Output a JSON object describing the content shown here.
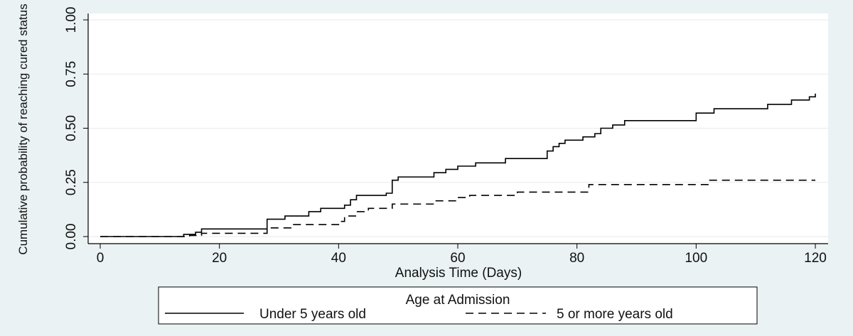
{
  "chart_data": {
    "type": "line",
    "title": "",
    "xlabel": "Analysis Time (Days)",
    "ylabel": "Cumulative probability of reaching cured status",
    "xlim": [
      0,
      120
    ],
    "ylim": [
      0,
      1
    ],
    "x_ticks": [
      0,
      20,
      40,
      60,
      80,
      100,
      120
    ],
    "y_ticks": [
      0,
      0.25,
      0.5,
      0.75,
      1
    ],
    "y_tick_labels": [
      "0.00",
      "0.25",
      "0.50",
      "0.75",
      "1.00"
    ],
    "grid": "horizontal",
    "legend": {
      "title": "Age at Admission",
      "placement": "bottom"
    },
    "series": [
      {
        "name": "Under 5 years old",
        "style": "solid",
        "color": "#000000",
        "step_points": [
          [
            0,
            0
          ],
          [
            14,
            0.01
          ],
          [
            16,
            0.02
          ],
          [
            17,
            0.035
          ],
          [
            28,
            0.08
          ],
          [
            31,
            0.095
          ],
          [
            35,
            0.115
          ],
          [
            37,
            0.13
          ],
          [
            41,
            0.145
          ],
          [
            42,
            0.17
          ],
          [
            43,
            0.19
          ],
          [
            48,
            0.2
          ],
          [
            49,
            0.26
          ],
          [
            50,
            0.275
          ],
          [
            56,
            0.295
          ],
          [
            58,
            0.31
          ],
          [
            60,
            0.325
          ],
          [
            63,
            0.34
          ],
          [
            68,
            0.36
          ],
          [
            75,
            0.395
          ],
          [
            76,
            0.415
          ],
          [
            77,
            0.43
          ],
          [
            78,
            0.445
          ],
          [
            81,
            0.46
          ],
          [
            83,
            0.475
          ],
          [
            84,
            0.5
          ],
          [
            86,
            0.515
          ],
          [
            88,
            0.535
          ],
          [
            100,
            0.57
          ],
          [
            103,
            0.59
          ],
          [
            112,
            0.61
          ],
          [
            116,
            0.63
          ],
          [
            119,
            0.645
          ],
          [
            120,
            0.66
          ]
        ]
      },
      {
        "name": "5 or more years old",
        "style": "dashed",
        "color": "#000000",
        "step_points": [
          [
            0,
            0
          ],
          [
            15,
            0.005
          ],
          [
            17,
            0.015
          ],
          [
            28,
            0.04
          ],
          [
            32,
            0.055
          ],
          [
            40,
            0.07
          ],
          [
            41,
            0.095
          ],
          [
            43,
            0.115
          ],
          [
            45,
            0.13
          ],
          [
            49,
            0.15
          ],
          [
            56,
            0.165
          ],
          [
            60,
            0.18
          ],
          [
            62,
            0.19
          ],
          [
            70,
            0.205
          ],
          [
            82,
            0.24
          ],
          [
            102,
            0.26
          ],
          [
            120,
            0.26
          ]
        ]
      }
    ]
  }
}
